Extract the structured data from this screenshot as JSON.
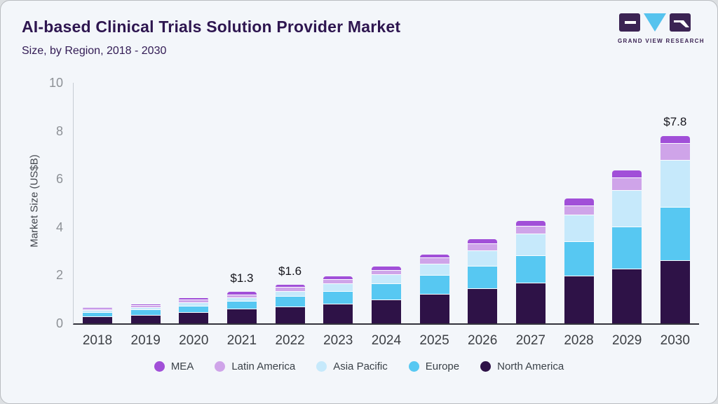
{
  "header": {
    "title": "AI-based Clinical Trials Solution Provider Market",
    "subtitle": "Size, by Region, 2018 - 2030",
    "logo_caption": "GRAND VIEW RESEARCH"
  },
  "chart_data": {
    "type": "bar",
    "stacked": true,
    "title": "AI-based Clinical Trials Solution Provider Market Size, by Region, 2018 - 2030",
    "xlabel": "",
    "ylabel": "Market Size (US$B)",
    "ylim": [
      0,
      10
    ],
    "yticks": [
      0,
      2,
      4,
      6,
      8,
      10
    ],
    "grid": false,
    "legend_position": "bottom",
    "categories": [
      "2018",
      "2019",
      "2020",
      "2021",
      "2022",
      "2023",
      "2024",
      "2025",
      "2026",
      "2027",
      "2028",
      "2029",
      "2030"
    ],
    "series": [
      {
        "name": "North America",
        "color": "#2e1247",
        "values": [
          0.28,
          0.35,
          0.46,
          0.6,
          0.7,
          0.81,
          1.0,
          1.22,
          1.45,
          1.68,
          1.97,
          2.27,
          2.63
        ]
      },
      {
        "name": "Europe",
        "color": "#57c8f2",
        "values": [
          0.18,
          0.22,
          0.28,
          0.32,
          0.45,
          0.54,
          0.65,
          0.8,
          0.95,
          1.15,
          1.43,
          1.76,
          2.22
        ]
      },
      {
        "name": "Asia Pacific",
        "color": "#c6e9fb",
        "values": [
          0.09,
          0.11,
          0.15,
          0.17,
          0.2,
          0.31,
          0.38,
          0.45,
          0.62,
          0.9,
          1.12,
          1.51,
          1.95
        ]
      },
      {
        "name": "Latin America",
        "color": "#cfa4e9",
        "values": [
          0.06,
          0.08,
          0.1,
          0.12,
          0.16,
          0.19,
          0.2,
          0.26,
          0.3,
          0.32,
          0.37,
          0.52,
          0.68
        ]
      },
      {
        "name": "MEA",
        "color": "#a14fd8",
        "values": [
          0.04,
          0.04,
          0.06,
          0.09,
          0.09,
          0.1,
          0.12,
          0.12,
          0.18,
          0.2,
          0.31,
          0.29,
          0.32
        ]
      }
    ],
    "totals": [
      0.65,
      0.8,
      1.05,
      1.3,
      1.6,
      1.95,
      2.35,
      2.85,
      3.5,
      4.25,
      5.2,
      6.35,
      7.8
    ],
    "point_labels": [
      "",
      "",
      "",
      "$1.3",
      "$1.6",
      "",
      "",
      "",
      "",
      "",
      "",
      "",
      "$7.8"
    ],
    "legend_order": [
      "MEA",
      "Latin America",
      "Asia Pacific",
      "Europe",
      "North America"
    ],
    "colors": {
      "background": "#f3f6fa",
      "title_text": "#2e1650",
      "axis_line": "#33333d",
      "tick_text": "#8d9196",
      "logo_purple": "#3b2353",
      "logo_blue": "#56c3ee"
    }
  }
}
